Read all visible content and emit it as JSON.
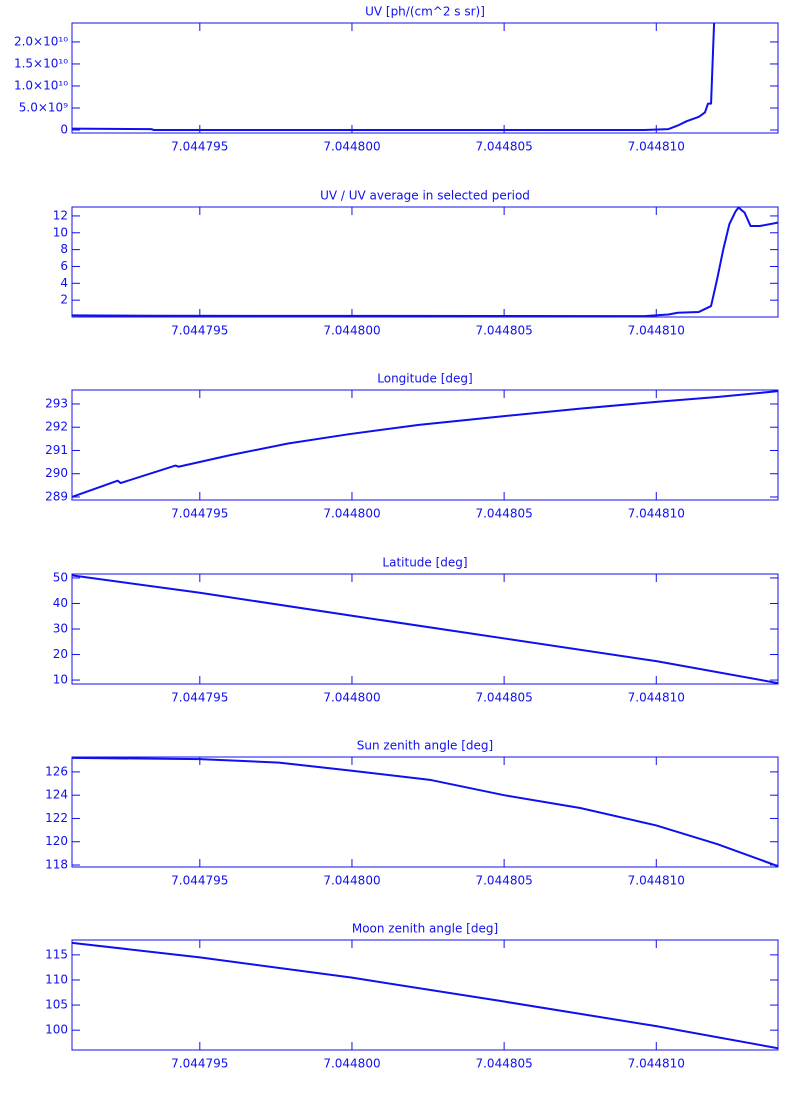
{
  "chart_data": [
    {
      "type": "line",
      "title": "UV [ph/(cm^2 s sr)]",
      "color": "#1010ee",
      "x": [
        7.0447908,
        7.0447934,
        7.0447935,
        7.0448096,
        7.0448104,
        7.0448107,
        7.044811,
        7.0448114,
        7.0448116,
        7.0448117,
        7.0448118,
        7.0448119
      ],
      "values": [
        300000000,
        200000000,
        0,
        0,
        200000000,
        1000000000,
        2000000000,
        3000000000,
        4000000000,
        6000000000,
        6000000000,
        24300000000
      ],
      "xlim": [
        7.0447908,
        7.044814
      ],
      "xticks": [
        7.044795,
        {
          "value": 7.0448,
          "label": "7.044800"
        },
        7.044805,
        {
          "value": 7.04481,
          "label": "7.044810"
        }
      ],
      "ylim": [
        -680000000,
        24300000000
      ],
      "yticks": [
        0,
        {
          "value": 5000000000,
          "label": "5.0×10⁹"
        },
        {
          "value": 10000000000,
          "label": "1.0×10¹⁰"
        },
        {
          "value": 15000000000,
          "label": "1.5×10¹⁰"
        },
        {
          "value": 20000000000,
          "label": "2.0×10¹⁰"
        }
      ]
    },
    {
      "type": "line",
      "title": "UV / UV average in selected period",
      "color": "#1010ee",
      "x": [
        7.0447908,
        7.0447934,
        7.0448096,
        7.0448104,
        7.0448107,
        7.0448114,
        7.0448118,
        7.044812,
        7.0448122,
        7.0448124,
        7.0448126,
        7.0448127,
        7.0448129,
        7.0448131,
        7.0448134,
        7.044814
      ],
      "values": [
        0.2,
        0.15,
        0.1,
        0.3,
        0.5,
        0.6,
        1.3,
        4.5,
        8,
        11,
        12.5,
        13,
        12.4,
        10.8,
        10.8,
        11.2
      ],
      "xlim": [
        7.0447908,
        7.044814
      ],
      "xticks": [
        7.044795,
        {
          "value": 7.0448,
          "label": "7.044800"
        },
        7.044805,
        {
          "value": 7.04481,
          "label": "7.044810"
        }
      ],
      "ylim": [
        0,
        13.06
      ],
      "yticks": [
        2,
        4,
        6,
        8,
        10,
        12
      ]
    },
    {
      "type": "line",
      "title": "Longitude [deg]",
      "color": "#1010ee",
      "x": [
        7.0447908,
        7.0447923,
        7.0447924,
        7.0447942,
        7.0447943,
        7.044796,
        7.0447979,
        7.0447999,
        7.0448022,
        7.0448048,
        7.0448075,
        7.0448101,
        7.044812,
        7.044814
      ],
      "values": [
        289.0,
        289.7,
        289.6,
        290.35,
        290.3,
        290.8,
        291.3,
        291.7,
        292.1,
        292.45,
        292.8,
        293.1,
        293.3,
        293.55
      ],
      "xlim": [
        7.0447908,
        7.044814
      ],
      "xticks": [
        7.044795,
        {
          "value": 7.0448,
          "label": "7.044800"
        },
        7.044805,
        {
          "value": 7.04481,
          "label": "7.044810"
        }
      ],
      "ylim": [
        288.87,
        293.6
      ],
      "yticks": [
        289,
        290,
        291,
        292,
        293
      ]
    },
    {
      "type": "line",
      "title": "Latitude [deg]",
      "color": "#1010ee",
      "x": [
        7.0447908,
        7.044795,
        7.0448,
        7.044805,
        7.04481,
        7.044814
      ],
      "values": [
        51,
        44.2,
        35.2,
        26.3,
        17.4,
        8.8
      ],
      "xlim": [
        7.0447908,
        7.044814
      ],
      "xticks": [
        7.044795,
        {
          "value": 7.0448,
          "label": "7.044800"
        },
        7.044805,
        {
          "value": 7.04481,
          "label": "7.044810"
        }
      ],
      "ylim": [
        8.45,
        51.55
      ],
      "yticks": [
        10,
        20,
        30,
        40,
        50
      ]
    },
    {
      "type": "line",
      "title": "Sun zenith angle [deg]",
      "color": "#1010ee",
      "x": [
        7.0447908,
        7.044795,
        7.0447976,
        7.0448,
        7.0448026,
        7.044805,
        7.0448075,
        7.04481,
        7.044812,
        7.044814
      ],
      "values": [
        127.2,
        127.1,
        126.8,
        126.1,
        125.3,
        124.0,
        122.9,
        121.4,
        119.8,
        117.9
      ],
      "xlim": [
        7.0447908,
        7.044814
      ],
      "xticks": [
        7.044795,
        {
          "value": 7.0448,
          "label": "7.044800"
        },
        7.044805,
        {
          "value": 7.04481,
          "label": "7.044810"
        }
      ],
      "ylim": [
        117.83,
        127.28
      ],
      "yticks": [
        118,
        120,
        122,
        124,
        126
      ]
    },
    {
      "type": "line",
      "title": "Moon zenith angle [deg]",
      "color": "#1010ee",
      "x": [
        7.0447908,
        7.044795,
        7.0448,
        7.044805,
        7.04481,
        7.044814
      ],
      "values": [
        117.4,
        114.5,
        110.46,
        105.7,
        100.8,
        96.4
      ],
      "xlim": [
        7.0447908,
        7.044814
      ],
      "xticks": [
        7.044795,
        {
          "value": 7.0448,
          "label": "7.044800"
        },
        7.044805,
        {
          "value": 7.04481,
          "label": "7.044810"
        }
      ],
      "ylim": [
        96.05,
        117.96
      ],
      "yticks": [
        100,
        105,
        110,
        115
      ]
    }
  ]
}
